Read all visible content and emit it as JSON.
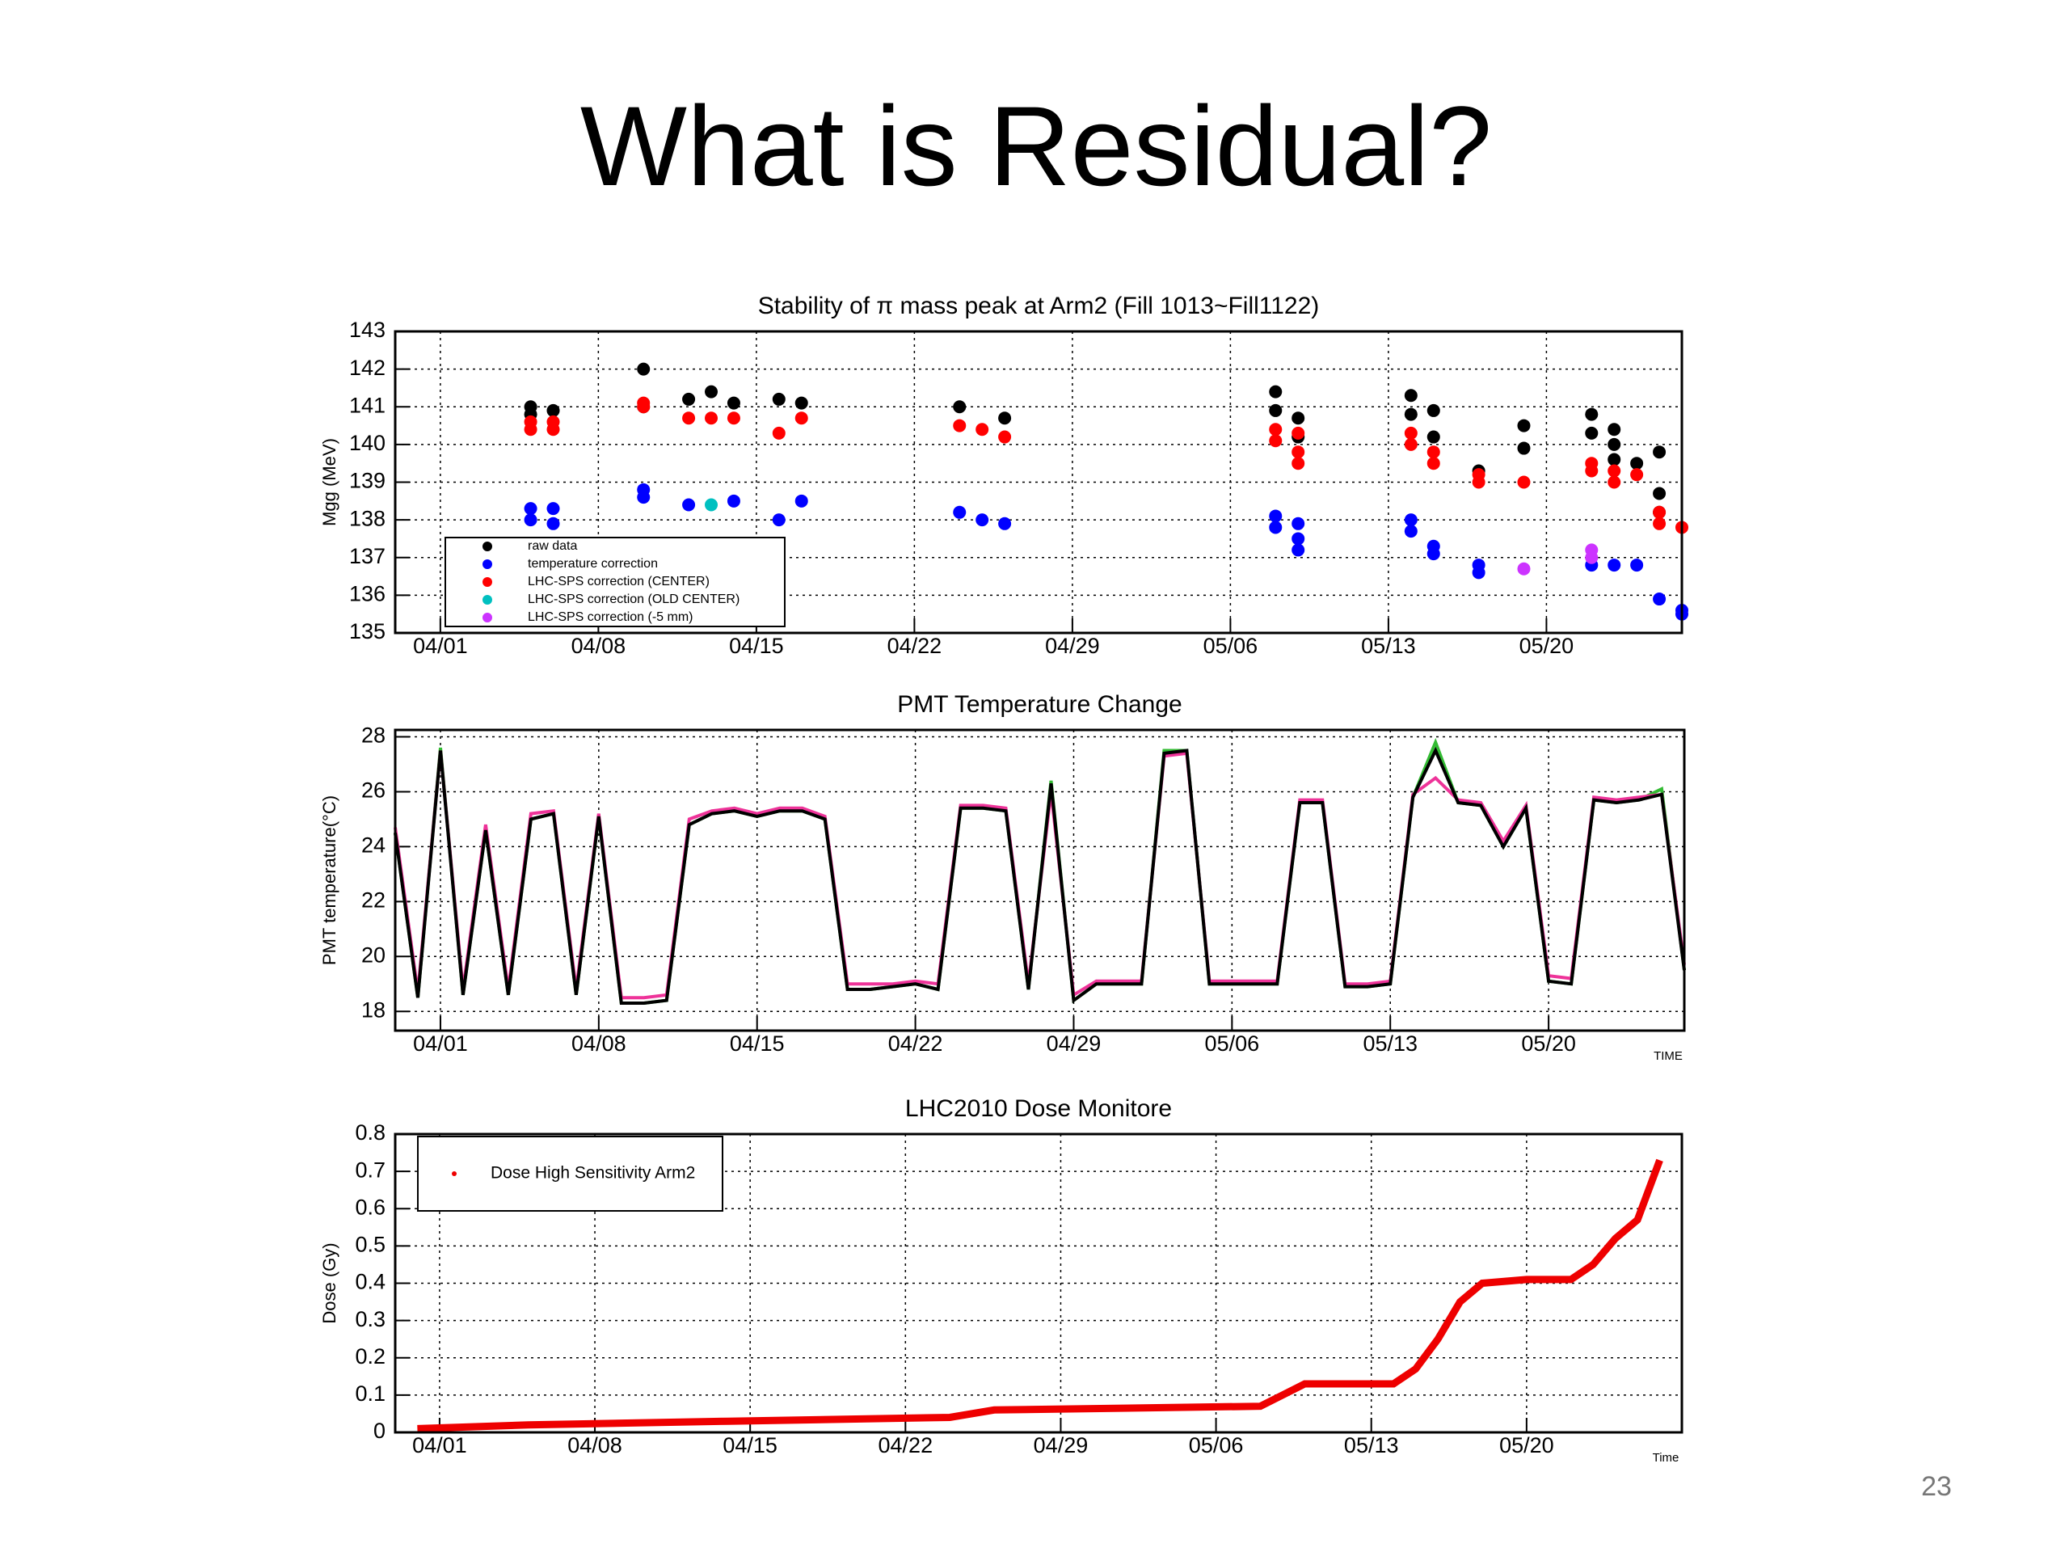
{
  "slide": {
    "title": "What is Residual?",
    "page_number": "23"
  },
  "chart_data": [
    {
      "type": "scatter",
      "title": "Stability of π mass peak at Arm2 (Fill 1013~Fill1122)",
      "ylabel": "Mgg (MeV)",
      "xlim": [
        "03/30",
        "05/26"
      ],
      "xticks": [
        "04/01",
        "04/08",
        "04/15",
        "04/22",
        "04/29",
        "05/06",
        "05/13",
        "05/20"
      ],
      "ylim": [
        135,
        143
      ],
      "yticks": [
        135,
        136,
        137,
        138,
        139,
        140,
        141,
        142,
        143
      ],
      "grid": true,
      "legend": "lower left",
      "series": [
        {
          "name": "raw data",
          "color": "#000000",
          "x": [
            "04/05",
            "04/05",
            "04/06",
            "04/10",
            "04/10",
            "04/12",
            "04/13",
            "04/14",
            "04/16",
            "04/17",
            "04/24",
            "04/26",
            "05/08",
            "05/08",
            "05/09",
            "05/09",
            "05/14",
            "05/14",
            "05/15",
            "05/15",
            "05/17",
            "05/19",
            "05/19",
            "05/22",
            "05/22",
            "05/23",
            "05/23",
            "05/23",
            "05/24",
            "05/25",
            "05/25",
            "05/25"
          ],
          "values": [
            141,
            140.8,
            140.9,
            142,
            141,
            141.2,
            141.4,
            141.1,
            141.2,
            141.1,
            141,
            140.7,
            141.4,
            140.9,
            140.7,
            140.2,
            141.3,
            140.8,
            140.9,
            140.2,
            139.3,
            140.5,
            139.9,
            140.8,
            140.3,
            140.4,
            140,
            139.6,
            139.5,
            139.8,
            138.7,
            138.2
          ]
        },
        {
          "name": "temperature correction",
          "color": "#0000ff",
          "x": [
            "04/05",
            "04/05",
            "04/06",
            "04/06",
            "04/10",
            "04/10",
            "04/12",
            "04/14",
            "04/16",
            "04/17",
            "04/24",
            "04/25",
            "04/26",
            "05/08",
            "05/08",
            "05/09",
            "05/09",
            "05/09",
            "05/14",
            "05/14",
            "05/15",
            "05/15",
            "05/17",
            "05/17",
            "05/22",
            "05/23",
            "05/24",
            "05/25",
            "05/26",
            "05/26"
          ],
          "values": [
            138.3,
            138,
            138.3,
            137.9,
            138.8,
            138.6,
            138.4,
            138.5,
            138,
            138.5,
            138.2,
            138,
            137.9,
            138.1,
            137.8,
            137.9,
            137.5,
            137.2,
            138,
            137.7,
            137.3,
            137.1,
            136.8,
            136.6,
            136.8,
            136.8,
            136.8,
            135.9,
            135.6,
            135.5
          ]
        },
        {
          "name": "LHC-SPS correction (CENTER)",
          "color": "#ff0000",
          "x": [
            "04/05",
            "04/05",
            "04/06",
            "04/06",
            "04/10",
            "04/10",
            "04/12",
            "04/13",
            "04/14",
            "04/16",
            "04/17",
            "04/24",
            "04/25",
            "04/26",
            "05/08",
            "05/08",
            "05/09",
            "05/09",
            "05/09",
            "05/14",
            "05/14",
            "05/15",
            "05/15",
            "05/17",
            "05/17",
            "05/19",
            "05/22",
            "05/22",
            "05/23",
            "05/23",
            "05/24",
            "05/25",
            "05/25",
            "05/26"
          ],
          "values": [
            140.6,
            140.4,
            140.6,
            140.4,
            141,
            141.1,
            140.7,
            140.7,
            140.7,
            140.3,
            140.7,
            140.5,
            140.4,
            140.2,
            140.4,
            140.1,
            140.3,
            139.8,
            139.5,
            140.3,
            140,
            139.8,
            139.5,
            139.2,
            139,
            139,
            139.5,
            139.3,
            139,
            139.3,
            139.2,
            138.2,
            137.9,
            137.8
          ]
        },
        {
          "name": "LHC-SPS correction (OLD CENTER)",
          "color": "#00c0c0",
          "x": [
            "04/13"
          ],
          "values": [
            138.4
          ]
        },
        {
          "name": "LHC-SPS correction (-5 mm)",
          "color": "#cc33ff",
          "x": [
            "05/19",
            "05/22",
            "05/22"
          ],
          "values": [
            136.7,
            137.2,
            137.0
          ]
        }
      ]
    },
    {
      "type": "line",
      "title": "PMT Temperature Change",
      "ylabel": "PMT temperature(°C)",
      "xlabel": "TIME",
      "xlim": [
        "03/30",
        "05/26"
      ],
      "xticks": [
        "04/01",
        "04/08",
        "04/15",
        "04/22",
        "04/29",
        "05/06",
        "05/13",
        "05/20"
      ],
      "ylim": [
        17.3,
        28.25
      ],
      "yticks": [
        18,
        20,
        22,
        24,
        26,
        28
      ],
      "grid": true,
      "x": [
        "03/30",
        "03/31",
        "04/01",
        "04/02",
        "04/03",
        "04/04",
        "04/05",
        "04/06",
        "04/07",
        "04/08",
        "04/09",
        "04/10",
        "04/11",
        "04/12",
        "04/13",
        "04/14",
        "04/15",
        "04/16",
        "04/17",
        "04/18",
        "04/19",
        "04/20",
        "04/21",
        "04/22",
        "04/23",
        "04/24",
        "04/25",
        "04/26",
        "04/27",
        "04/28",
        "04/29",
        "04/30",
        "05/01",
        "05/02",
        "05/03",
        "05/04",
        "05/05",
        "05/06",
        "05/07",
        "05/08",
        "05/09",
        "05/10",
        "05/11",
        "05/12",
        "05/13",
        "05/14",
        "05/15",
        "05/16",
        "05/17",
        "05/18",
        "05/19",
        "05/20",
        "05/21",
        "05/22",
        "05/23",
        "05/24",
        "05/25",
        "05/26"
      ],
      "series": [
        {
          "color": "#33bb33",
          "values": [
            24.5,
            18.5,
            27.6,
            18.6,
            24.6,
            18.6,
            25.0,
            25.2,
            18.6,
            25.1,
            18.3,
            18.3,
            18.4,
            24.8,
            25.2,
            25.3,
            25.1,
            25.3,
            25.3,
            25.0,
            18.8,
            18.8,
            18.9,
            19.0,
            18.8,
            25.4,
            25.4,
            25.3,
            18.8,
            26.4,
            18.4,
            19.0,
            19.0,
            19.0,
            27.5,
            27.5,
            19.0,
            19.0,
            19.0,
            19.0,
            25.6,
            25.6,
            18.9,
            18.9,
            19.0,
            25.8,
            27.8,
            25.6,
            25.5,
            24.0,
            25.4,
            19.1,
            19.0,
            25.7,
            25.6,
            25.7,
            26.1,
            19.5
          ]
        },
        {
          "color": "#ee3399",
          "values": [
            24.7,
            18.7,
            27.5,
            18.8,
            24.8,
            18.8,
            25.2,
            25.3,
            18.8,
            25.2,
            18.5,
            18.5,
            18.6,
            25.0,
            25.3,
            25.4,
            25.2,
            25.4,
            25.4,
            25.1,
            19.0,
            19.0,
            19.0,
            19.1,
            19.0,
            25.5,
            25.5,
            25.4,
            19.0,
            26.0,
            18.6,
            19.1,
            19.1,
            19.1,
            27.3,
            27.4,
            19.1,
            19.1,
            19.1,
            19.1,
            25.7,
            25.7,
            19.0,
            19.0,
            19.1,
            25.9,
            26.5,
            25.7,
            25.6,
            24.2,
            25.5,
            19.3,
            19.2,
            25.8,
            25.7,
            25.8,
            25.9,
            19.7
          ]
        },
        {
          "color": "#000000",
          "values": [
            24.5,
            18.5,
            27.5,
            18.6,
            24.6,
            18.6,
            25.0,
            25.2,
            18.6,
            25.1,
            18.3,
            18.3,
            18.4,
            24.8,
            25.2,
            25.3,
            25.1,
            25.3,
            25.3,
            25.0,
            18.8,
            18.8,
            18.9,
            19.0,
            18.8,
            25.4,
            25.4,
            25.3,
            18.8,
            26.3,
            18.4,
            19.0,
            19.0,
            19.0,
            27.4,
            27.5,
            19.0,
            19.0,
            19.0,
            19.0,
            25.6,
            25.6,
            18.9,
            18.9,
            19.0,
            25.8,
            27.5,
            25.6,
            25.5,
            24.0,
            25.4,
            19.1,
            19.0,
            25.7,
            25.6,
            25.7,
            25.9,
            19.5
          ]
        }
      ]
    },
    {
      "type": "line",
      "title": "LHC2010 Dose Monitore",
      "ylabel": "Dose (Gy)",
      "xlabel": "Time",
      "xlim": [
        "03/30",
        "05/27"
      ],
      "xticks": [
        "04/01",
        "04/08",
        "04/15",
        "04/22",
        "04/29",
        "05/06",
        "05/13",
        "05/20"
      ],
      "ylim": [
        0,
        0.8
      ],
      "yticks": [
        0,
        0.1,
        0.2,
        0.3,
        0.4,
        0.5,
        0.6,
        0.7,
        0.8
      ],
      "grid": true,
      "legend": "upper left",
      "x": [
        "03/31",
        "04/05",
        "04/14",
        "04/24",
        "04/26",
        "05/08",
        "05/09",
        "05/10",
        "05/14",
        "05/15",
        "05/16",
        "05/17",
        "05/18",
        "05/20",
        "05/22",
        "05/23",
        "05/24",
        "05/25",
        "05/26"
      ],
      "series": [
        {
          "name": "Dose High Sensitivity Arm2",
          "color": "#ee0000",
          "values": [
            0.01,
            0.02,
            0.03,
            0.04,
            0.06,
            0.07,
            0.1,
            0.13,
            0.13,
            0.17,
            0.25,
            0.35,
            0.4,
            0.41,
            0.41,
            0.45,
            0.52,
            0.57,
            0.73
          ]
        }
      ]
    }
  ]
}
